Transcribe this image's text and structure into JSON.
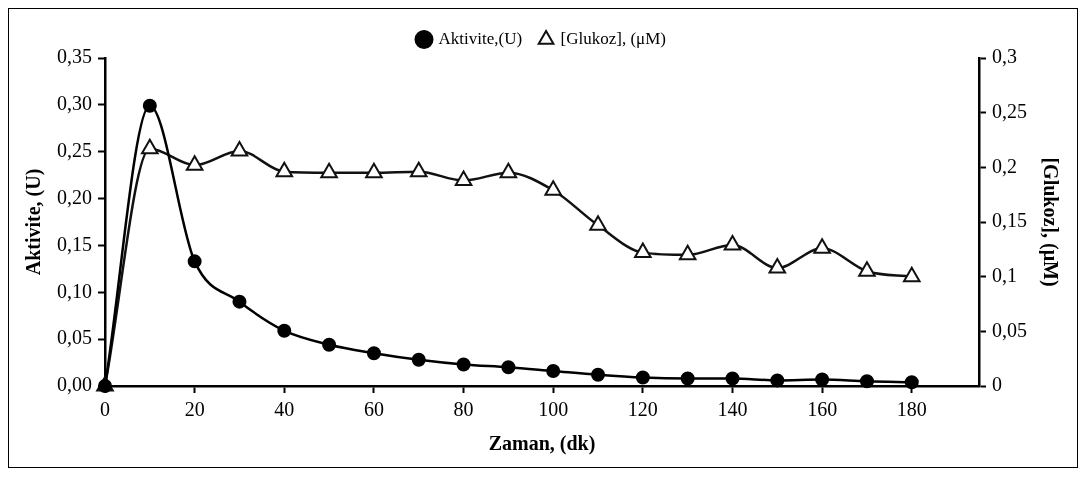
{
  "chart_data": {
    "type": "line",
    "xlabel": "Zaman, (dk)",
    "ylabel": "Aktivite, (U)",
    "y2label": "[Glukoz], (μM)",
    "x": [
      0,
      10,
      20,
      30,
      40,
      50,
      60,
      70,
      80,
      90,
      100,
      110,
      120,
      130,
      140,
      150,
      160,
      170,
      180
    ],
    "series": [
      {
        "name": "Aktivite,(U)",
        "color": "#000000",
        "marker": "circle",
        "values": [
          0,
          0.299,
          0.133,
          0.09,
          0.059,
          0.044,
          0.035,
          0.028,
          0.023,
          0.02,
          0.016,
          0.012,
          0.009,
          0.008,
          0.008,
          0.006,
          0.007,
          0.005,
          0.004
        ]
      },
      {
        "name": "[Glukoz], (μM)",
        "color": "#111111",
        "marker": "triangle",
        "axis": "y2",
        "values": [
          0,
          0.217,
          0.202,
          0.215,
          0.196,
          0.195,
          0.195,
          0.196,
          0.188,
          0.195,
          0.179,
          0.147,
          0.122,
          0.12,
          0.129,
          0.108,
          0.126,
          0.105,
          0.1
        ]
      }
    ],
    "xlim": [
      0,
      195
    ],
    "xticks": [
      0,
      20,
      40,
      60,
      80,
      100,
      120,
      140,
      160,
      180
    ],
    "ylim": [
      0,
      0.35
    ],
    "yticks": [
      {
        "value": 0,
        "label": "0,00"
      },
      {
        "value": 0.05,
        "label": "0,05"
      },
      {
        "value": 0.1,
        "label": "0,10"
      },
      {
        "value": 0.15,
        "label": "0,15"
      },
      {
        "value": 0.2,
        "label": "0,20"
      },
      {
        "value": 0.25,
        "label": "0,25"
      },
      {
        "value": 0.3,
        "label": "0,30"
      },
      {
        "value": 0.35,
        "label": "0,35"
      }
    ],
    "y2lim": [
      0,
      0.3
    ],
    "y2ticks": [
      0,
      {
        "value": 0.05,
        "label": "0,05"
      },
      {
        "value": 0.1,
        "label": "0,1"
      },
      {
        "value": 0.15,
        "label": "0,15"
      },
      {
        "value": 0.2,
        "label": "0,2"
      },
      {
        "value": 0.25,
        "label": "0,25"
      },
      {
        "value": 0.3,
        "label": "0,3"
      }
    ],
    "grid": false,
    "legend": "top",
    "line_style": "solid"
  }
}
